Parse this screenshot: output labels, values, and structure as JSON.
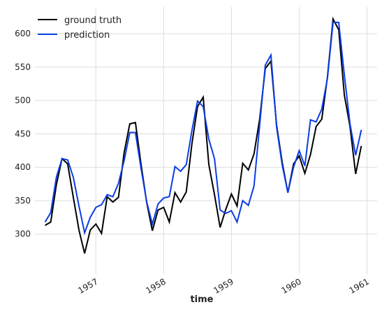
{
  "chart_data": {
    "type": "line",
    "x_label": "time",
    "x": [
      1956.25,
      1956.3333,
      1956.4167,
      1956.5,
      1956.5833,
      1956.6667,
      1956.75,
      1956.8333,
      1956.9167,
      1957.0,
      1957.0833,
      1957.1667,
      1957.25,
      1957.3333,
      1957.4167,
      1957.5,
      1957.5833,
      1957.6667,
      1957.75,
      1957.8333,
      1957.9167,
      1958.0,
      1958.0833,
      1958.1667,
      1958.25,
      1958.3333,
      1958.4167,
      1958.5,
      1958.5833,
      1958.6667,
      1958.75,
      1958.8333,
      1958.9167,
      1959.0,
      1959.0833,
      1959.1667,
      1959.25,
      1959.3333,
      1959.4167,
      1959.5,
      1959.5833,
      1959.6667,
      1959.75,
      1959.8333,
      1959.9167,
      1960.0,
      1960.0833,
      1960.1667,
      1960.25,
      1960.3333,
      1960.4167,
      1960.5,
      1960.5833,
      1960.6667,
      1960.75,
      1960.8333,
      1960.9167
    ],
    "series": [
      {
        "name": "ground truth",
        "color": "#000000",
        "values": [
          313,
          318,
          374,
          413,
          405,
          355,
          306,
          271,
          306,
          315,
          301,
          356,
          348,
          355,
          422,
          465,
          467,
          404,
          347,
          305,
          336,
          340,
          318,
          362,
          348,
          363,
          435,
          491,
          505,
          404,
          359,
          310,
          337,
          360,
          342,
          406,
          396,
          420,
          472,
          548,
          559,
          463,
          407,
          362,
          405,
          417,
          391,
          419,
          461,
          472,
          535,
          622,
          606,
          508,
          461,
          390,
          432
        ]
      },
      {
        "name": "prediction",
        "color": "#0a3de6",
        "values": [
          318,
          332,
          385,
          413,
          411,
          385,
          342,
          302,
          325,
          340,
          344,
          359,
          356,
          376,
          410,
          452,
          452,
          398,
          348,
          315,
          345,
          354,
          356,
          401,
          394,
          404,
          455,
          499,
          491,
          442,
          413,
          336,
          331,
          335,
          318,
          350,
          343,
          372,
          463,
          553,
          568,
          460,
          403,
          362,
          400,
          425,
          402,
          471,
          468,
          487,
          533,
          617,
          617,
          538,
          465,
          418,
          456
        ]
      }
    ],
    "xlim": [
      1956.1,
      1961.15
    ],
    "xticks": [
      1957,
      1958,
      1959,
      1960,
      1961
    ],
    "ylim": [
      240,
      640
    ],
    "yticks": [
      300,
      350,
      400,
      450,
      500,
      550,
      600
    ],
    "grid": true,
    "legend": "upper left"
  }
}
